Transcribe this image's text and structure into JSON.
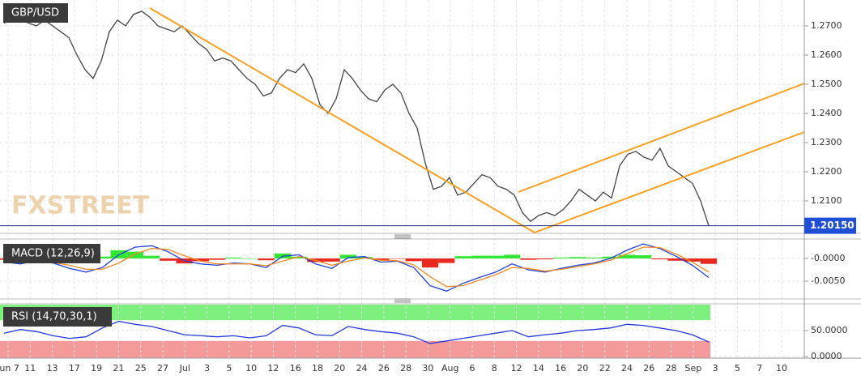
{
  "chart_data": [
    {
      "type": "line",
      "title": "GBP/USD",
      "watermark": "FXSTREET",
      "color": "#444444",
      "values": [
        1.271,
        1.272,
        1.273,
        1.271,
        1.27,
        1.272,
        1.27,
        1.268,
        1.266,
        1.26,
        1.255,
        1.252,
        1.258,
        1.268,
        1.272,
        1.27,
        1.274,
        1.275,
        1.273,
        1.27,
        1.269,
        1.268,
        1.27,
        1.267,
        1.264,
        1.262,
        1.258,
        1.259,
        1.258,
        1.255,
        1.252,
        1.25,
        1.246,
        1.247,
        1.252,
        1.255,
        1.254,
        1.257,
        1.252,
        1.243,
        1.24,
        1.245,
        1.255,
        1.252,
        1.248,
        1.245,
        1.244,
        1.248,
        1.25,
        1.247,
        1.24,
        1.235,
        1.223,
        1.214,
        1.215,
        1.218,
        1.212,
        1.213,
        1.216,
        1.219,
        1.218,
        1.215,
        1.214,
        1.212,
        1.206,
        1.203,
        1.205,
        1.206,
        1.205,
        1.207,
        1.21,
        1.214,
        1.212,
        1.21,
        1.213,
        1.211,
        1.222,
        1.226,
        1.227,
        1.225,
        1.224,
        1.228,
        1.222,
        1.22,
        1.218,
        1.216,
        1.21,
        1.2015
      ],
      "last_price": {
        "value": 1.2015,
        "label": "1.20150"
      },
      "ylim": [
        1.19917,
        1.27889
      ],
      "yticks": [
        {
          "value": 1.21,
          "label": "1.2100"
        },
        {
          "value": 1.22,
          "label": "1.2200"
        },
        {
          "value": 1.23,
          "label": "1.2300"
        },
        {
          "value": 1.24,
          "label": "1.2400"
        },
        {
          "value": 1.25,
          "label": "1.2500"
        },
        {
          "value": 1.26,
          "label": "1.2600"
        },
        {
          "value": 1.27,
          "label": "1.2700"
        }
      ],
      "grid": true
    },
    {
      "type": "macd",
      "title": "MACD (12,26,9)",
      "series": [
        {
          "color": "#1f3fd6",
          "values": [
            -0.0008,
            -0.0012,
            -0.0005,
            -0.001,
            -0.0022,
            -0.003,
            -0.002,
            0.0008,
            0.0025,
            0.0028,
            0.0015,
            -0.0005,
            -0.0012,
            -0.0015,
            -0.001,
            -0.0012,
            -0.002,
            0.0005,
            0.0008,
            -0.0012,
            -0.0022,
            0.0002,
            0.0004,
            -0.0008,
            -0.0006,
            -0.002,
            -0.006,
            -0.0072,
            -0.0055,
            -0.0042,
            -0.003,
            -0.0012,
            -0.0025,
            -0.003,
            -0.0022,
            -0.0015,
            -0.001,
            0.0,
            0.0018,
            0.0032,
            0.0022,
            0.0005,
            -0.0015,
            -0.0042
          ]
        },
        {
          "color": "#f08a24",
          "values": [
            -0.0005,
            -0.0009,
            -0.0008,
            -0.0009,
            -0.0015,
            -0.0024,
            -0.0024,
            -0.001,
            0.001,
            0.0022,
            0.002,
            0.0006,
            -0.0006,
            -0.0012,
            -0.0012,
            -0.0012,
            -0.0016,
            -0.0006,
            0.0004,
            -0.0004,
            -0.0015,
            -0.0006,
            0.0001,
            -0.0004,
            -0.0005,
            -0.0014,
            -0.004,
            -0.0062,
            -0.006,
            -0.0048,
            -0.0036,
            -0.002,
            -0.0022,
            -0.0028,
            -0.0024,
            -0.0018,
            -0.0012,
            -0.0004,
            0.001,
            0.0025,
            0.0024,
            0.001,
            -0.0008,
            -0.003
          ]
        }
      ],
      "histogram": [
        -0.0003,
        -0.0003,
        0.0003,
        -0.0001,
        -0.0007,
        -0.0006,
        0.0004,
        0.0018,
        0.0015,
        0.0006,
        -0.0005,
        -0.0011,
        -0.0006,
        -0.0003,
        0.0002,
        0.0,
        -0.0004,
        0.0011,
        0.0004,
        -0.0008,
        -0.0007,
        0.0008,
        0.0003,
        -0.0004,
        -0.0001,
        -0.0006,
        -0.002,
        -0.001,
        0.0005,
        0.0006,
        0.0006,
        0.0008,
        -0.0003,
        -0.0002,
        0.0002,
        0.0003,
        0.0002,
        0.0004,
        0.0008,
        0.0007,
        -0.0002,
        -0.0005,
        -0.0007,
        -0.0012
      ],
      "positive_color": "#33e633",
      "negative_color": "#e82a1e",
      "ylim": [
        -0.00875,
        0.0041
      ],
      "yticks": [
        {
          "value": 0,
          "label": "-0.0000"
        },
        {
          "value": -0.005,
          "label": "-0.0050"
        }
      ],
      "grid": true
    },
    {
      "type": "rsi",
      "title": "RSI (14,70,30,1)",
      "color": "#2438d6",
      "values": [
        45,
        52,
        48,
        40,
        35,
        38,
        55,
        68,
        62,
        58,
        50,
        42,
        40,
        38,
        40,
        36,
        40,
        60,
        55,
        42,
        40,
        58,
        52,
        48,
        45,
        38,
        25,
        30,
        35,
        40,
        45,
        50,
        38,
        42,
        45,
        50,
        52,
        55,
        62,
        60,
        55,
        50,
        42,
        28
      ],
      "levels": [
        70,
        30
      ],
      "upper_color": "#7df07d",
      "lower_color": "#f59a9a",
      "ylim": [
        -3.125,
        100
      ],
      "yticks": [
        {
          "value": 50,
          "label": "50.0000"
        },
        {
          "value": 0,
          "label": "0.0000"
        }
      ],
      "x_labels": [
        "Jun 7",
        "11",
        "13",
        "17",
        "19",
        "21",
        "25",
        "27",
        "Jul",
        "3",
        "5",
        "10",
        "12",
        "16",
        "18",
        "20",
        "24",
        "26",
        "28",
        "30",
        "Aug",
        "6",
        "8",
        "12",
        "14",
        "16",
        "20",
        "22",
        "24",
        "26",
        "28",
        "Sep",
        "3",
        "5",
        "7",
        "10"
      ],
      "grid": true
    }
  ]
}
